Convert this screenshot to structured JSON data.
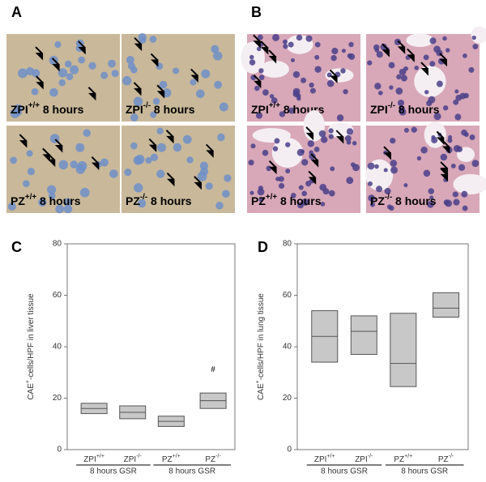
{
  "panel_labels": [
    "A",
    "B",
    "C",
    "D"
  ],
  "micrographs": {
    "A": [
      "ZPI+/+ 8 hours",
      "ZPI-/- 8 hours",
      "PZ+/+ 8 hours",
      "PZ-/- 8 hours"
    ],
    "B": [
      "ZPI+/+ 8 hours",
      "ZPI-/- 8 hours",
      "PZ+/+ 8 hours",
      "PZ-/- 8 hours"
    ]
  },
  "chart_data": [
    {
      "type": "box",
      "ylabel": "CAE+-cells/HPF in liver tissue",
      "categories": [
        "ZPI+/+",
        "ZPI-/-",
        "PZ+/+",
        "PZ-/-"
      ],
      "q1": [
        14,
        12,
        9,
        16
      ],
      "median": [
        16,
        14.5,
        11,
        19
      ],
      "q3": [
        18,
        17,
        13,
        22
      ],
      "group_labels": [
        "8 hours GSR",
        "8 hours GSR"
      ],
      "annotations": [
        {
          "text": "#",
          "x": "PZ-/-",
          "y": 31
        }
      ],
      "color": "#c8c8c8",
      "ylim": [
        0,
        80
      ],
      "yticks": [
        0,
        20,
        40,
        60,
        80
      ]
    },
    {
      "type": "box",
      "ylabel": "CAE+-cells/HPF in lung tissue",
      "categories": [
        "ZPI+/+",
        "ZPI-/-",
        "PZ+/+",
        "PZ-/-"
      ],
      "q1": [
        34,
        37,
        24.5,
        51.5
      ],
      "median": [
        44,
        46,
        33.5,
        55
      ],
      "q3": [
        54,
        52,
        53,
        61
      ],
      "group_labels": [
        "8 hours GSR",
        "8 hours GSR"
      ],
      "annotations": [],
      "color": "#c8c8c8",
      "ylim": [
        0,
        80
      ],
      "yticks": [
        0,
        20,
        40,
        60,
        80
      ]
    }
  ]
}
